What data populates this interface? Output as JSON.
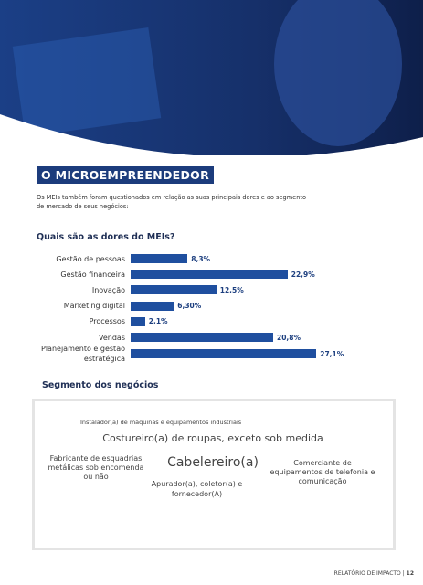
{
  "header": {
    "title": "O MICROEMPREENDEDOR",
    "intro": "Os MEIs também foram questionados em relação as suas principais dores e ao segmento de mercado de seus negócios:"
  },
  "chart_data": {
    "type": "bar",
    "title": "Quais são as dores do MEIs?",
    "categories": [
      "Gestão de pessoas",
      "Gestão financeira",
      "Inovação",
      "Marketing digital",
      "Processos",
      "Vendas",
      "Planejamento e gestão estratégica"
    ],
    "values": [
      8.3,
      22.9,
      12.5,
      6.3,
      2.1,
      20.8,
      27.1
    ],
    "value_labels": [
      "8,3%",
      "22,9%",
      "12,5%",
      "6,30%",
      "2,1%",
      "20,8%",
      "27,1%"
    ],
    "color": "#1f4f9f"
  },
  "segments": {
    "title": "Segmento dos negócios",
    "items": [
      "Instalador(a) de máquinas e equipamentos industriais",
      "Costureiro(a) de roupas, exceto sob medida",
      "Fabricante de esquadrias metálicas sob encomenda ou não",
      "Cabelereiro(a)",
      "Comerciante de equipamentos de telefonia e comunicação",
      "Apurador(a), coletor(a) e fornecedor(A)"
    ]
  },
  "footer": {
    "label": "RELATÓRIO DE IMPACTO",
    "page": "12"
  }
}
